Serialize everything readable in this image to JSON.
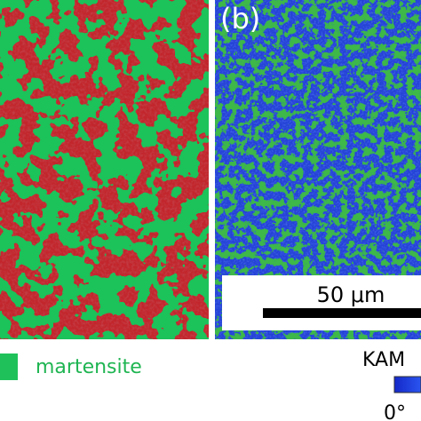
{
  "panel_label": "(b)",
  "scale_bar": "50 μm",
  "legend": {
    "label": "martensite"
  },
  "colorbar": {
    "title": "KAM",
    "min_label": "0°"
  }
}
